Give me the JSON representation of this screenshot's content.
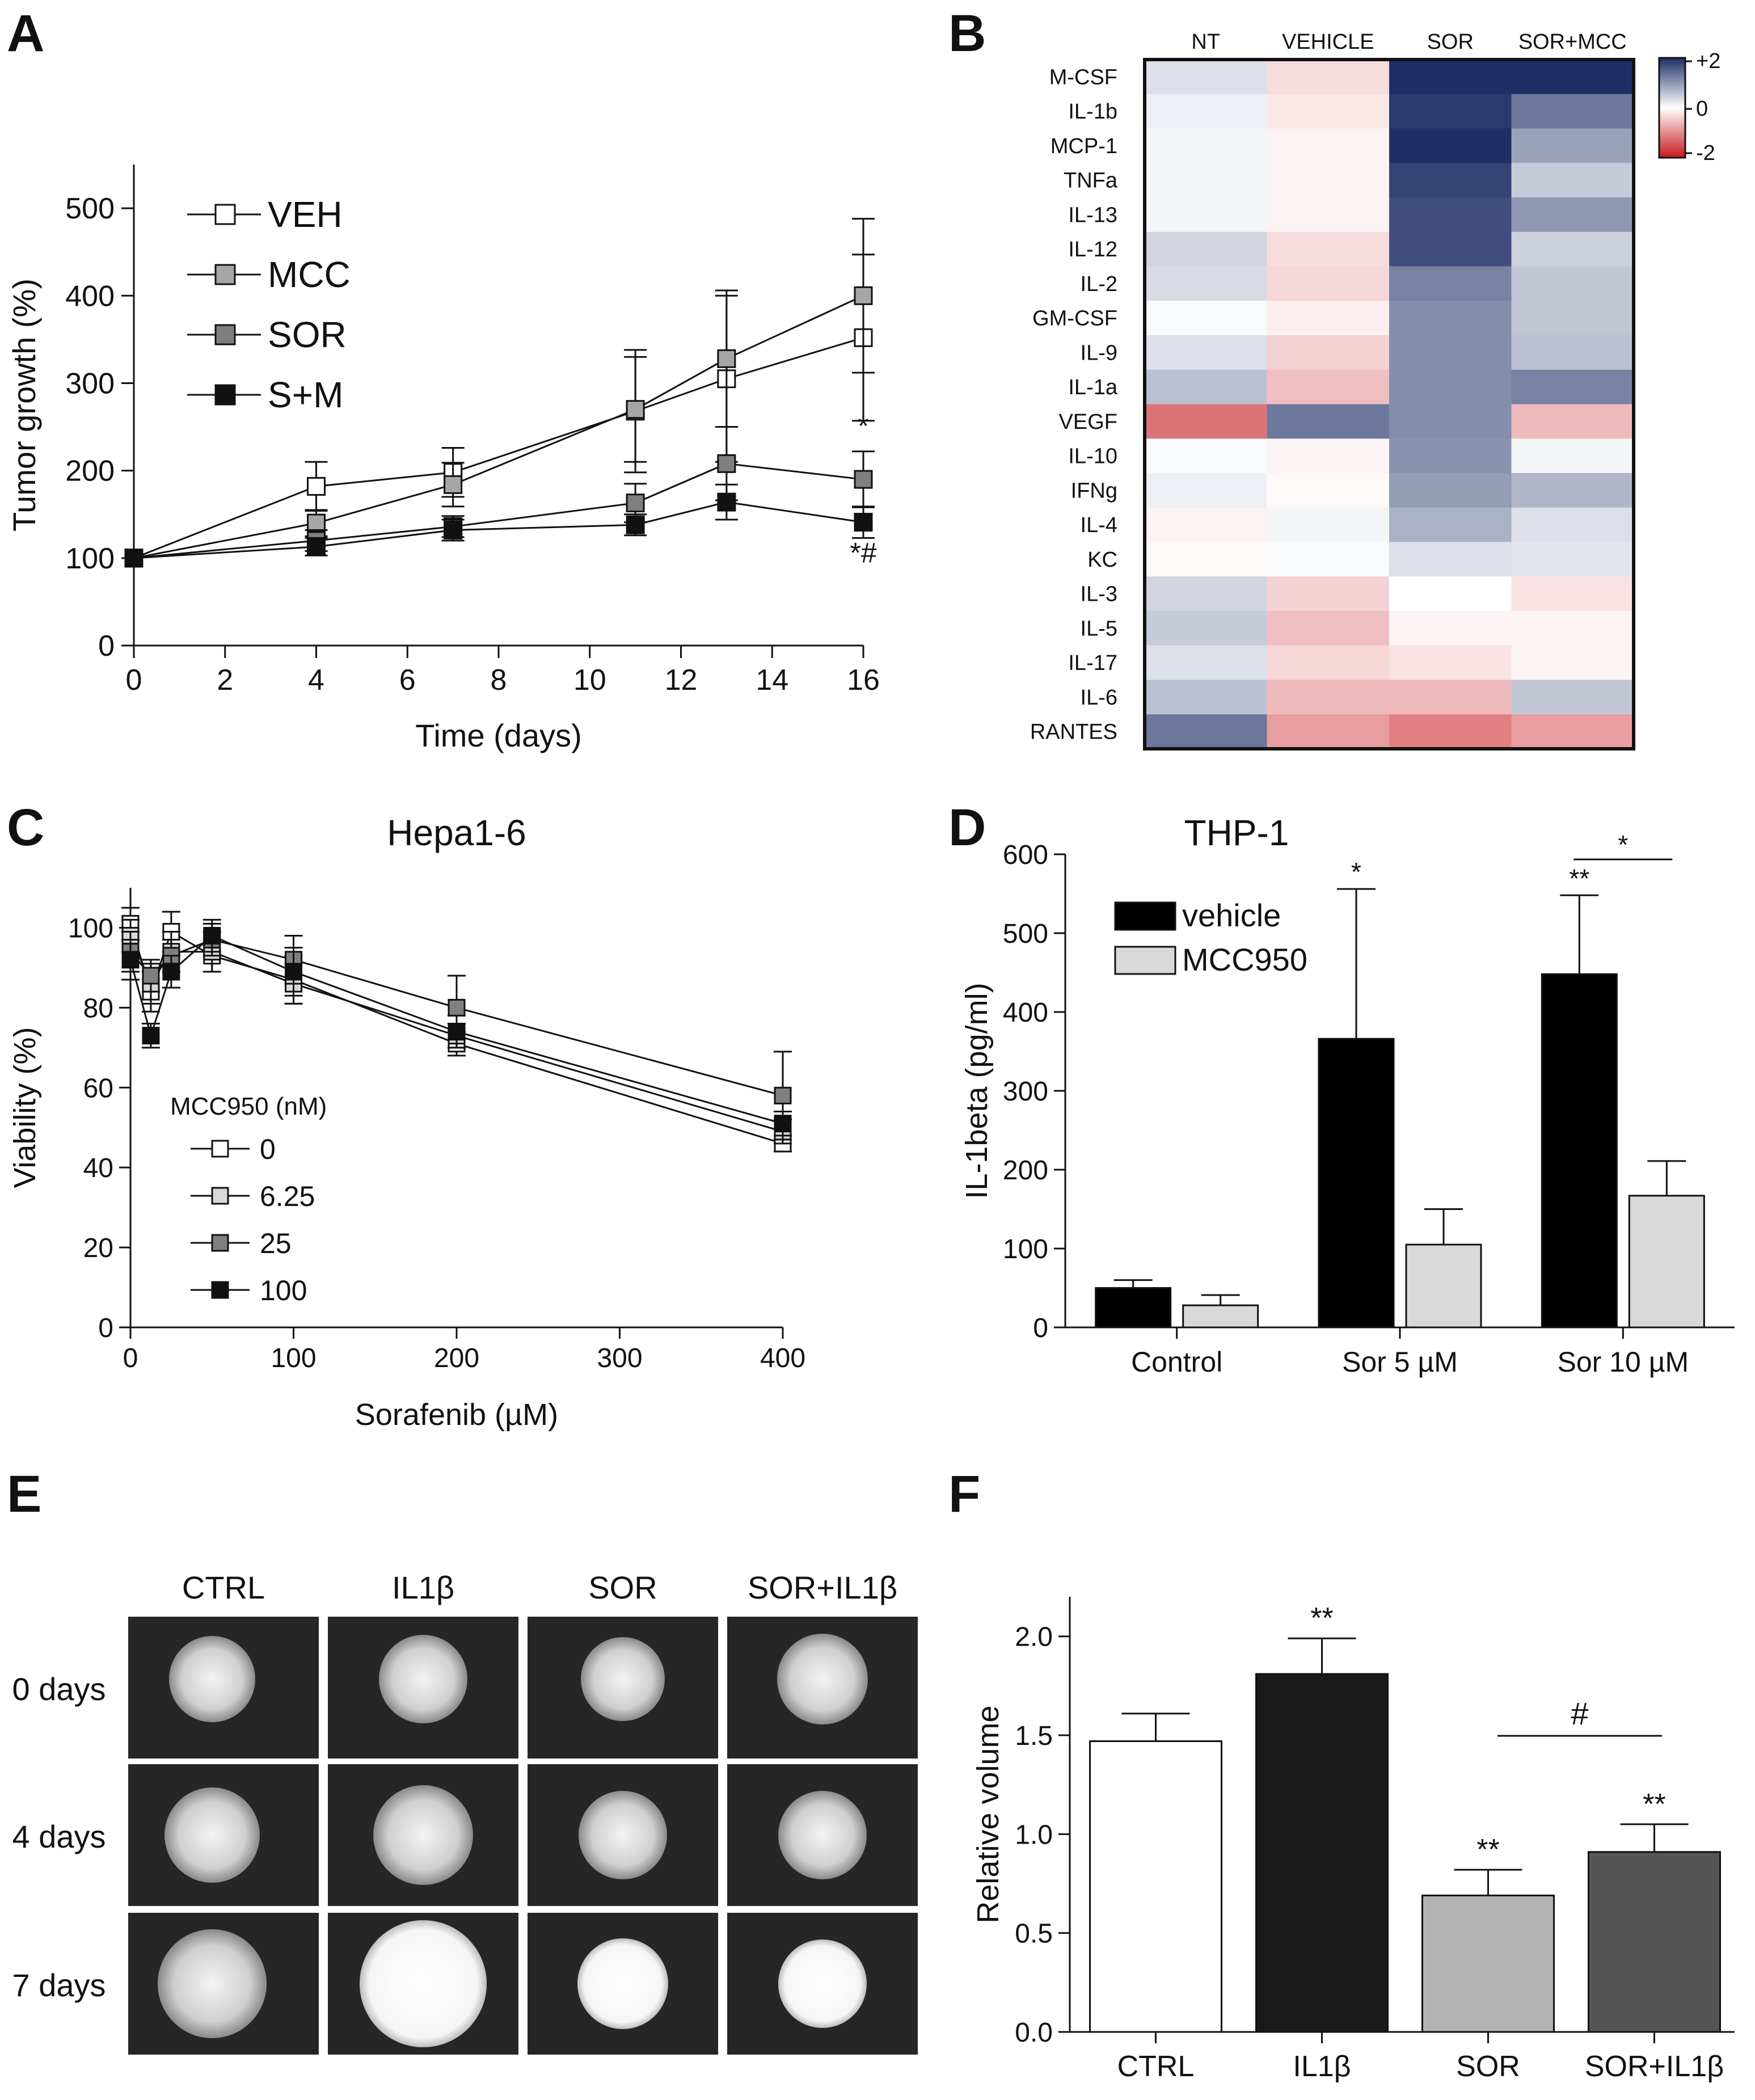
{
  "panels": {
    "A": {
      "letter": "A"
    },
    "B": {
      "letter": "B"
    },
    "C": {
      "letter": "C"
    },
    "D": {
      "letter": "D"
    },
    "E": {
      "letter": "E"
    },
    "F": {
      "letter": "F"
    }
  },
  "chart_data": [
    {
      "id": "A",
      "type": "line",
      "title": "",
      "xlabel": "Time (days)",
      "ylabel": "Tumor growth (%)",
      "xlim": [
        0,
        16
      ],
      "ylim": [
        0,
        550
      ],
      "xticks": [
        0,
        2,
        4,
        6,
        8,
        10,
        12,
        14,
        16
      ],
      "yticks": [
        0,
        100,
        200,
        300,
        400,
        500
      ],
      "x": [
        0,
        4,
        7,
        11,
        13,
        16
      ],
      "series": [
        {
          "name": "VEH",
          "marker": "open",
          "color": "#ffffff",
          "values": [
            100,
            182,
            198,
            268,
            305,
            352
          ],
          "errors": [
            0,
            28,
            28,
            70,
            95,
            95
          ]
        },
        {
          "name": "MCC",
          "marker": "grey",
          "color": "#a6a6a6",
          "values": [
            100,
            140,
            184,
            270,
            328,
            400
          ],
          "errors": [
            0,
            15,
            25,
            60,
            78,
            88
          ]
        },
        {
          "name": "SOR",
          "marker": "grey",
          "color": "#7f7f7f",
          "values": [
            100,
            120,
            136,
            163,
            208,
            190
          ],
          "errors": [
            0,
            12,
            12,
            22,
            42,
            32
          ]
        },
        {
          "name": "S+M",
          "marker": "filled",
          "color": "#111111",
          "values": [
            100,
            113,
            132,
            138,
            164,
            141
          ],
          "errors": [
            0,
            10,
            12,
            12,
            20,
            18
          ]
        }
      ],
      "annotations": [
        {
          "x": 16,
          "y": 240,
          "text": "*"
        },
        {
          "x": 16,
          "y": 95,
          "text": "*#"
        }
      ]
    },
    {
      "id": "B",
      "type": "heatmap",
      "columns": [
        "NT",
        "VEHICLE",
        "SOR",
        "SOR+MCC"
      ],
      "rows": [
        "M-CSF",
        "IL-1b",
        "MCP-1",
        "TNFa",
        "IL-13",
        "IL-12",
        "IL-2",
        "GM-CSF",
        "IL-9",
        "IL-1a",
        "VEGF",
        "IL-10",
        "IFNg",
        "IL-4",
        "KC",
        "IL-3",
        "IL-5",
        "IL-17",
        "IL-6",
        "RANTES"
      ],
      "values": [
        [
          0.3,
          -0.3,
          2.0,
          2.0
        ],
        [
          0.15,
          -0.2,
          1.9,
          1.3
        ],
        [
          0.1,
          -0.1,
          2.0,
          0.9
        ],
        [
          0.1,
          -0.1,
          1.8,
          0.5
        ],
        [
          0.1,
          -0.1,
          1.7,
          1.0
        ],
        [
          0.4,
          -0.3,
          1.7,
          0.45
        ],
        [
          0.35,
          -0.35,
          1.2,
          0.55
        ],
        [
          0.05,
          -0.15,
          1.1,
          0.55
        ],
        [
          0.3,
          -0.4,
          1.1,
          0.6
        ],
        [
          0.6,
          -0.55,
          1.1,
          1.2
        ],
        [
          -1.2,
          1.3,
          1.1,
          -0.6
        ],
        [
          0.05,
          -0.1,
          1.05,
          0.1
        ],
        [
          0.15,
          -0.05,
          0.95,
          0.7
        ],
        [
          -0.1,
          0.1,
          0.75,
          0.3
        ],
        [
          -0.05,
          0.05,
          0.3,
          0.25
        ],
        [
          0.4,
          -0.4,
          0.0,
          -0.25
        ],
        [
          0.5,
          -0.55,
          -0.1,
          -0.1
        ],
        [
          0.3,
          -0.35,
          -0.25,
          -0.1
        ],
        [
          0.6,
          -0.6,
          -0.6,
          0.55
        ],
        [
          1.3,
          -0.85,
          -1.1,
          -0.85
        ]
      ],
      "colorbar": {
        "min": -2,
        "max": 2,
        "labels": [
          "+2",
          "0",
          "-2"
        ],
        "high": "#1f2f66",
        "mid": "#ffffff",
        "low": "#c8181d"
      }
    },
    {
      "id": "C",
      "type": "line",
      "title": "Hepa1-6",
      "xlabel": "Sorafenib (µM)",
      "ylabel": "Viability (%)",
      "legend_title": "MCC950 (nM)",
      "xlim": [
        0,
        400
      ],
      "ylim": [
        0,
        110
      ],
      "xticks": [
        0,
        100,
        200,
        300,
        400
      ],
      "yticks": [
        0,
        20,
        40,
        60,
        80,
        100
      ],
      "x": [
        0,
        12.5,
        25,
        50,
        100,
        200,
        400
      ],
      "series": [
        {
          "name": "0",
          "color": "#ffffff",
          "values": [
            101,
            84,
            99,
            93,
            87,
            71,
            46
          ],
          "errors": [
            4,
            5,
            5,
            4,
            6,
            3,
            2
          ]
        },
        {
          "name": "6.25",
          "color": "#d9d9d9",
          "values": [
            98,
            86,
            94,
            94,
            86,
            73,
            49
          ],
          "errors": [
            4,
            5,
            5,
            5,
            5,
            3,
            3
          ]
        },
        {
          "name": "25",
          "color": "#808080",
          "values": [
            94,
            88,
            93,
            97,
            92,
            80,
            58
          ],
          "errors": [
            5,
            4,
            4,
            4,
            6,
            8,
            11
          ]
        },
        {
          "name": "100",
          "color": "#111111",
          "values": [
            92,
            73,
            89,
            98,
            89,
            74,
            51
          ],
          "errors": [
            5,
            3,
            4,
            4,
            6,
            4,
            3
          ]
        }
      ]
    },
    {
      "id": "D",
      "type": "bar",
      "title": "THP-1",
      "xlabel": "",
      "ylabel": "IL-1beta (pg/ml)",
      "ylim": [
        0,
        600
      ],
      "yticks": [
        0,
        100,
        200,
        300,
        400,
        500,
        600
      ],
      "categories": [
        "Control",
        "Sor 5 µM",
        "Sor 10 µM"
      ],
      "series": [
        {
          "name": "vehicle",
          "color": "#000000",
          "values": [
            50,
            366,
            448
          ],
          "errors": [
            10,
            190,
            100
          ]
        },
        {
          "name": "MCC950",
          "color": "#d9d9d9",
          "values": [
            28,
            105,
            167
          ],
          "errors": [
            13,
            45,
            44
          ]
        }
      ],
      "annotations": [
        {
          "text": "*",
          "target": "Sor 5 µM vehicle"
        },
        {
          "text": "**",
          "target": "Sor 10 µM vehicle"
        },
        {
          "text": "*",
          "target": "bracket Sor 10 µM vehicle vs MCC950"
        }
      ]
    },
    {
      "id": "F",
      "type": "bar",
      "title": "",
      "xlabel": "",
      "ylabel": "Relative volume",
      "ylim": [
        0,
        2.2
      ],
      "yticks": [
        "0.0",
        "0.5",
        "1.0",
        "1.5",
        "2.0"
      ],
      "categories": [
        "CTRL",
        "IL1β",
        "SOR",
        "SOR+IL1β"
      ],
      "values": [
        1.47,
        1.81,
        0.69,
        0.91
      ],
      "errors": [
        0.14,
        0.18,
        0.13,
        0.14
      ],
      "colors": [
        "#ffffff",
        "#1a1a1a",
        "#b2b2b2",
        "#555555"
      ],
      "annotations": [
        {
          "text": "**",
          "target": "IL1β"
        },
        {
          "text": "**",
          "target": "SOR"
        },
        {
          "text": "**",
          "target": "SOR+IL1β"
        },
        {
          "text": "#",
          "target": "bracket SOR vs SOR+IL1β"
        }
      ]
    }
  ],
  "panel_E": {
    "columns": [
      "CTRL",
      "IL1β",
      "SOR",
      "SOR+IL1β"
    ],
    "rows": [
      "0 days",
      "4 days",
      "7 days"
    ]
  }
}
